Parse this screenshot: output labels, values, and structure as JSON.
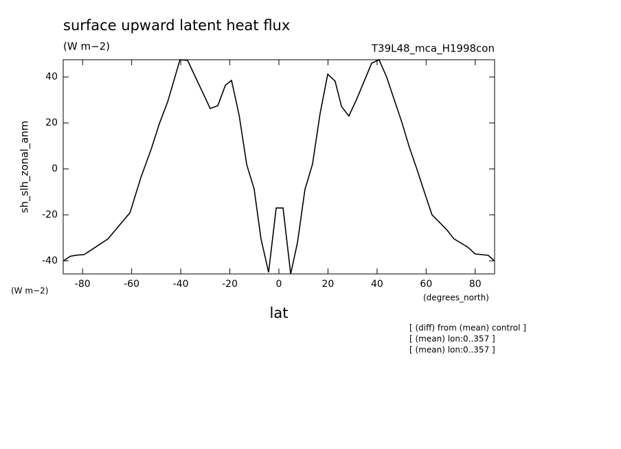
{
  "chart_data": {
    "type": "line",
    "title": "surface upward latent heat flux",
    "units": "(W m−2)",
    "experiment": "T39L48_mca_H1998con",
    "y_label": "sh_slh_zonal_anm",
    "y_units": "(W m−2)",
    "x_units": "(degrees_north)",
    "x_label": "lat",
    "notes": [
      "[ (diff) from (mean) control ]",
      "[ (mean) lon:0..357 ]",
      "[ (mean) lon:0..357 ]"
    ],
    "x": [
      -87.8,
      -85,
      -82.2,
      -79.4,
      -75.5,
      -69.6,
      -63.8,
      -60.7,
      -56.2,
      -52,
      -48.7,
      -45.3,
      -40.3,
      -37.2,
      -28,
      -24.9,
      -21.8,
      -19.3,
      -16.2,
      -13.1,
      -10.1,
      -7.3,
      -4.2,
      -1.1,
      1.7,
      4.8,
      7.6,
      10.6,
      13.7,
      16.8,
      19.9,
      22.9,
      25.5,
      28.5,
      31.6,
      37.8,
      40.8,
      43.9,
      47,
      50.1,
      53.1,
      56.2,
      59.3,
      62.4,
      65.5,
      68.5,
      71.3,
      76.9,
      80,
      85.3,
      87.8
    ],
    "series": [
      {
        "name": "sh_slh_zonal_anm",
        "color": "#000000",
        "values": [
          -40,
          -38,
          -37.5,
          -37.3,
          -34.6,
          -30.4,
          -23,
          -19.1,
          -3.6,
          8.7,
          19.7,
          29.3,
          47.5,
          47.2,
          26.3,
          27.5,
          36.4,
          38.5,
          23.3,
          1.8,
          -8.7,
          -30.4,
          -45,
          -17,
          -17,
          -45.7,
          -31.9,
          -9,
          2.1,
          24.2,
          41.2,
          38.2,
          27.2,
          23,
          30.1,
          46,
          47.5,
          40,
          30.1,
          20.3,
          9.6,
          0,
          -10.1,
          -20,
          -23.3,
          -26.6,
          -30.4,
          -34,
          -37,
          -37.6,
          -40
        ]
      }
    ],
    "xlim": [
      -87.9,
      87.9
    ],
    "ylim": [
      -45.7,
      47.5
    ],
    "xticks": [
      -80,
      -60,
      -40,
      -20,
      0,
      20,
      40,
      60,
      80
    ],
    "yticks": [
      -40,
      -20,
      0,
      20,
      40
    ]
  }
}
